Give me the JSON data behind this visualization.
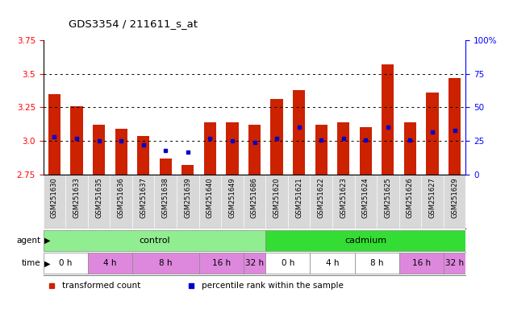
{
  "title": "GDS3354 / 211611_s_at",
  "samples": [
    "GSM251630",
    "GSM251633",
    "GSM251635",
    "GSM251636",
    "GSM251637",
    "GSM251638",
    "GSM251639",
    "GSM251640",
    "GSM251649",
    "GSM251686",
    "GSM251620",
    "GSM251621",
    "GSM251622",
    "GSM251623",
    "GSM251624",
    "GSM251625",
    "GSM251626",
    "GSM251627",
    "GSM251629"
  ],
  "transformed_count": [
    3.35,
    3.26,
    3.12,
    3.09,
    3.04,
    2.87,
    2.82,
    3.14,
    3.14,
    3.12,
    3.31,
    3.38,
    3.12,
    3.14,
    3.1,
    3.57,
    3.14,
    3.36,
    3.47
  ],
  "percentile": [
    28,
    27,
    25,
    25,
    22,
    18,
    17,
    27,
    25,
    24,
    27,
    35,
    26,
    27,
    26,
    35,
    26,
    32,
    33
  ],
  "ymin": 2.75,
  "ymax": 3.75,
  "yticks": [
    2.75,
    3.0,
    3.25,
    3.5,
    3.75
  ],
  "right_yticks": [
    0,
    25,
    50,
    75,
    100
  ],
  "grid_lines": [
    3.0,
    3.25,
    3.5
  ],
  "agent_groups": [
    {
      "label": "control",
      "start": 0,
      "end": 9,
      "color": "#90EE90"
    },
    {
      "label": "cadmium",
      "start": 10,
      "end": 18,
      "color": "#33DD33"
    }
  ],
  "time_groups": [
    {
      "label": "0 h",
      "start": 0,
      "end": 1,
      "color": "#FFFFFF"
    },
    {
      "label": "4 h",
      "start": 2,
      "end": 3,
      "color": "#DD88DD"
    },
    {
      "label": "8 h",
      "start": 4,
      "end": 6,
      "color": "#DD88DD"
    },
    {
      "label": "16 h",
      "start": 7,
      "end": 8,
      "color": "#DD88DD"
    },
    {
      "label": "32 h",
      "start": 9,
      "end": 9,
      "color": "#DD88DD"
    },
    {
      "label": "0 h",
      "start": 10,
      "end": 11,
      "color": "#FFFFFF"
    },
    {
      "label": "4 h",
      "start": 12,
      "end": 13,
      "color": "#FFFFFF"
    },
    {
      "label": "8 h",
      "start": 14,
      "end": 15,
      "color": "#FFFFFF"
    },
    {
      "label": "16 h",
      "start": 16,
      "end": 17,
      "color": "#DD88DD"
    },
    {
      "label": "32 h",
      "start": 18,
      "end": 18,
      "color": "#DD88DD"
    }
  ],
  "bar_color": "#CC2200",
  "marker_color": "#0000CC",
  "legend_items": [
    {
      "label": "transformed count",
      "color": "#CC2200",
      "marker": "s"
    },
    {
      "label": "percentile rank within the sample",
      "color": "#0000CC",
      "marker": "s"
    }
  ],
  "label_bg_color": "#D8D8D8",
  "chart_bg_color": "#FFFFFF"
}
